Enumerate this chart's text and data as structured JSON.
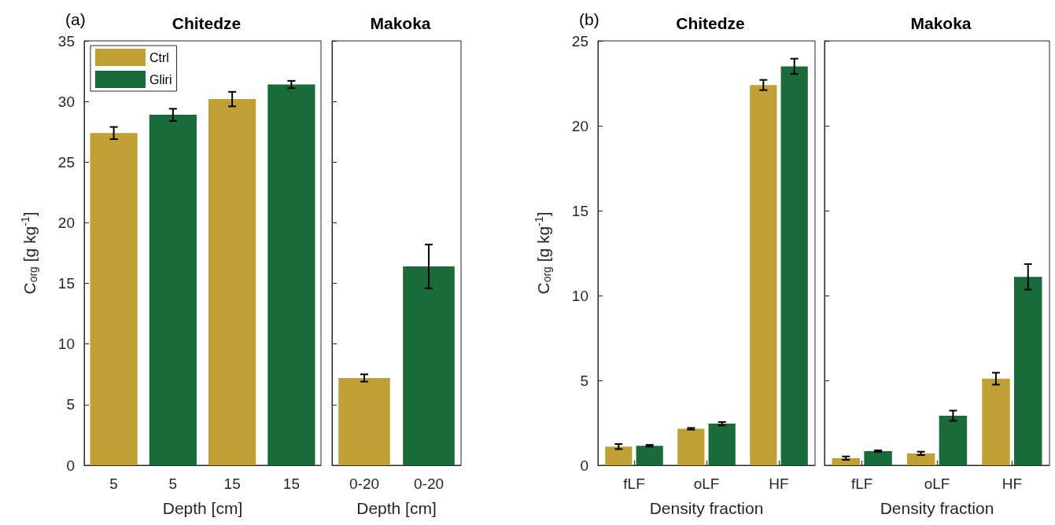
{
  "chart_data": [
    {
      "type": "bar",
      "title": "Chitedze",
      "xlabel": "Depth [cm]",
      "ylabel": "C$_{org}$ [g kg$^{-1}$]",
      "annotations": [
        "(a)"
      ],
      "categories": [
        "5",
        "5",
        "15",
        "15"
      ],
      "stacked": true,
      "legend": "top left",
      "ylim": [
        0,
        35
      ],
      "yticks": [
        0,
        5,
        10,
        15,
        20,
        25,
        30,
        35
      ],
      "series": [
        {
          "name": "Ctrl",
          "color": "#c0a035",
          "values": [
            27.4,
            null,
            30.2,
            null
          ],
          "errors": [
            0.5,
            null,
            0.6,
            null
          ]
        },
        {
          "name": "Gliri",
          "color": "#1a6b3a",
          "values": [
            null,
            28.9,
            null,
            31.4
          ],
          "errors": [
            null,
            0.5,
            null,
            0.3
          ]
        }
      ]
    },
    {
      "type": "bar",
      "title": "Makoka",
      "xlabel": "Depth [cm]",
      "categories": [
        "0-20",
        "0-20"
      ],
      "stacked": true,
      "tick_labels": "x",
      "ylim": [
        0,
        35
      ],
      "yticks": [
        0,
        5,
        10,
        15,
        20,
        25,
        30,
        35
      ],
      "series": [
        {
          "color": "#c0a035",
          "values": [
            7.2,
            null
          ],
          "errors": [
            0.3,
            null
          ]
        },
        {
          "color": "#1a6b3a",
          "values": [
            null,
            16.4
          ],
          "errors": [
            null,
            1.8
          ]
        }
      ]
    },
    {
      "type": "bar",
      "title": "Chitedze",
      "xlabel": "Density fraction",
      "ylabel": "C$_{org}$ [g kg$^{-1}$]",
      "annotations": [
        "(b)"
      ],
      "categories": [
        "fLF",
        "oLF",
        "HF"
      ],
      "ylim": [
        0,
        25
      ],
      "yticks": [
        0,
        5,
        10,
        15,
        20,
        25
      ],
      "series": [
        {
          "color": "#c0a035",
          "values": [
            1.1,
            2.15,
            22.4
          ],
          "errors": [
            0.15,
            0.05,
            0.3
          ]
        },
        {
          "color": "#1a6b3a",
          "values": [
            1.15,
            2.45,
            23.5
          ],
          "errors": [
            0.05,
            0.1,
            0.45
          ]
        }
      ]
    },
    {
      "type": "bar",
      "title": "Makoka",
      "xlabel": "Density fraction",
      "categories": [
        "fLF",
        "oLF",
        "HF"
      ],
      "tick_labels": "x",
      "ylim": [
        0,
        25
      ],
      "yticks": [
        0,
        5,
        10,
        15,
        20,
        25
      ],
      "series": [
        {
          "color": "#c0a035",
          "values": [
            0.42,
            0.7,
            5.1
          ],
          "errors": [
            0.1,
            0.1,
            0.35
          ]
        },
        {
          "color": "#1a6b3a",
          "values": [
            0.83,
            2.92,
            11.1
          ],
          "errors": [
            0.05,
            0.3,
            0.75
          ]
        }
      ]
    }
  ]
}
